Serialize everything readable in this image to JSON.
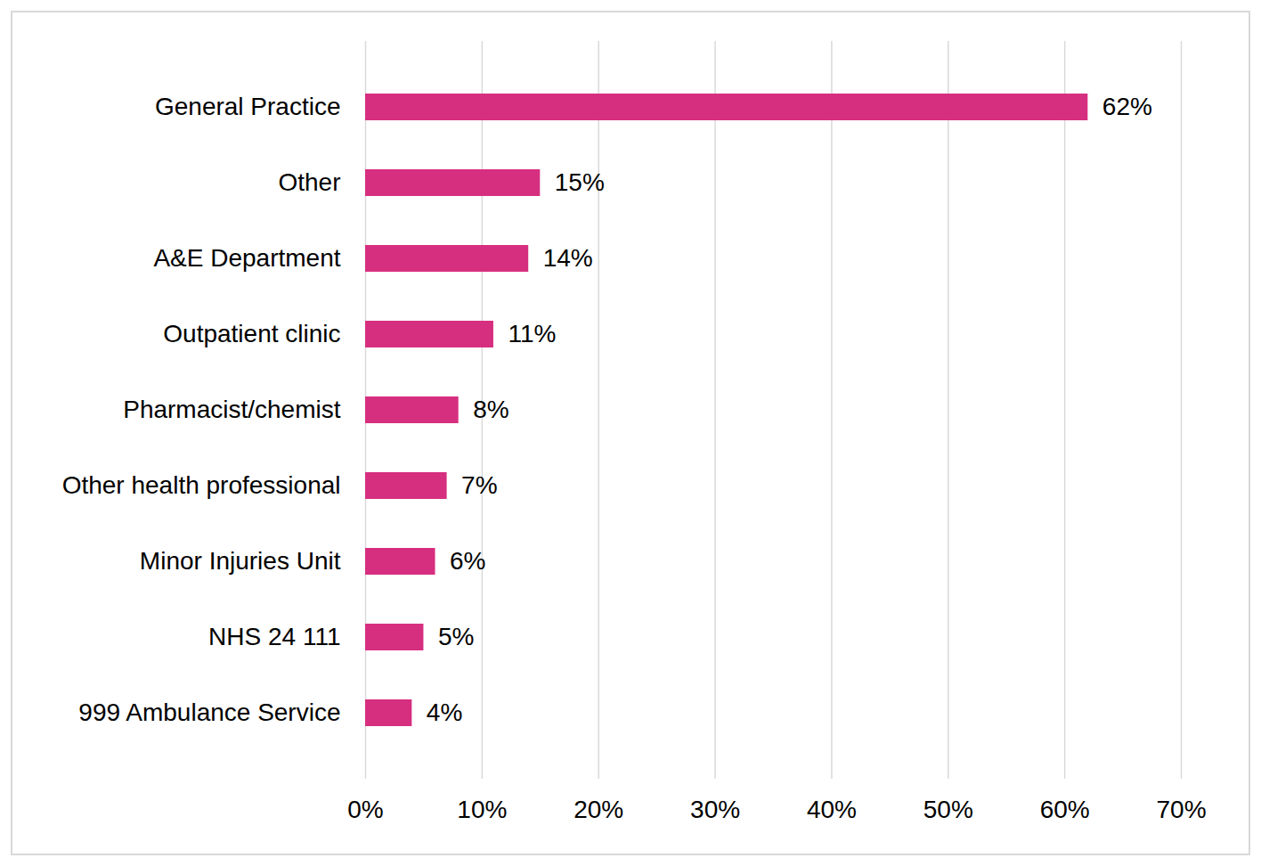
{
  "chart_data": {
    "type": "bar",
    "orientation": "horizontal",
    "categories": [
      "General Practice",
      "Other",
      "A&E Department",
      "Outpatient clinic",
      "Pharmacist/chemist",
      "Other health professional",
      "Minor Injuries Unit",
      "NHS 24 111",
      "999 Ambulance Service"
    ],
    "values": [
      62,
      15,
      14,
      11,
      8,
      7,
      6,
      5,
      4
    ],
    "value_labels": [
      "62%",
      "15%",
      "14%",
      "11%",
      "8%",
      "7%",
      "6%",
      "5%",
      "4%"
    ],
    "color": "#d62f7f",
    "xlim": [
      0,
      70
    ],
    "xticks": [
      {
        "value": 0,
        "label": "0%"
      },
      {
        "value": 10,
        "label": "10%"
      },
      {
        "value": 20,
        "label": "20%"
      },
      {
        "value": 30,
        "label": "30%"
      },
      {
        "value": 40,
        "label": "40%"
      },
      {
        "value": 50,
        "label": "50%"
      },
      {
        "value": 60,
        "label": "60%"
      },
      {
        "value": 70,
        "label": "70%"
      }
    ],
    "grid": true,
    "data_labels": true
  }
}
